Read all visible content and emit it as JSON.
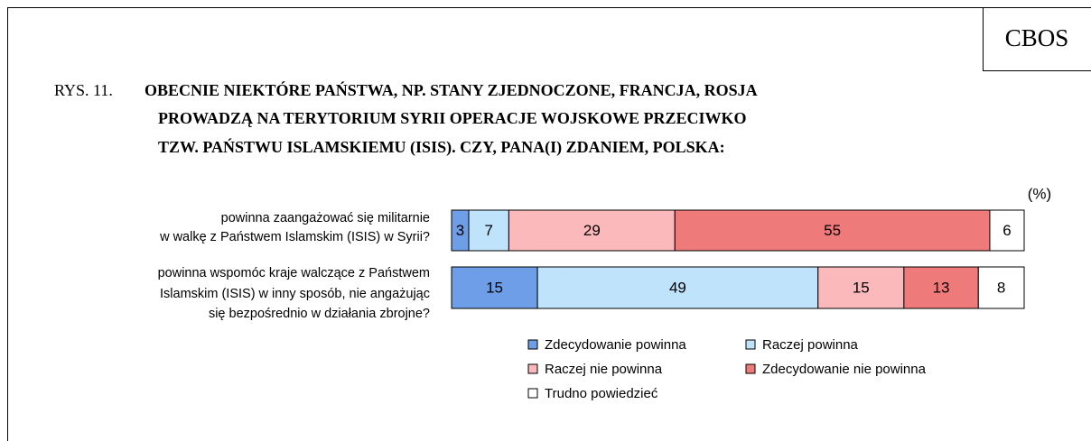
{
  "chart_data": {
    "type": "stacked_barh",
    "source": "CBOS",
    "figure_label": "RYS. 11.",
    "title": [
      "OBECNIE NIEKTÓRE PAŃSTWA, NP. STANY ZJEDNOCZONE, FRANCJA, ROSJA",
      "PROWADZĄ NA TERYTORIUM SYRII OPERACJE WOJSKOWE PRZECIWKO",
      "TZW. PAŃSTWU ISLAMSKIEMU (ISIS). CZY, PANA(I) ZDANIEM, POLSKA:"
    ],
    "unit": "(%)",
    "categories": [
      [
        "powinna zaangażować się militarnie",
        "w walkę z Państwem Islamskim (ISIS) w Syrii?"
      ],
      [
        "powinna wspomóc kraje walczące z Państwem",
        "Islamskim (ISIS) w inny sposób, nie angażując",
        "się bezpośrednio w działania zbrojne?"
      ]
    ],
    "xlim": [
      0,
      100
    ],
    "series": [
      {
        "name": "Zdecydowanie powinna",
        "color": "#6f9ee8",
        "values": [
          3,
          15
        ]
      },
      {
        "name": "Raczej powinna",
        "color": "#bfe3fb",
        "values": [
          7,
          49
        ]
      },
      {
        "name": "Raczej nie powinna",
        "color": "#fbb9bb",
        "values": [
          29,
          15
        ]
      },
      {
        "name": "Zdecydowanie nie powinna",
        "color": "#ee7a7a",
        "values": [
          55,
          13
        ]
      },
      {
        "name": "Trudno powiedzieć",
        "color": "#ffffff",
        "values": [
          6,
          8
        ]
      }
    ]
  }
}
